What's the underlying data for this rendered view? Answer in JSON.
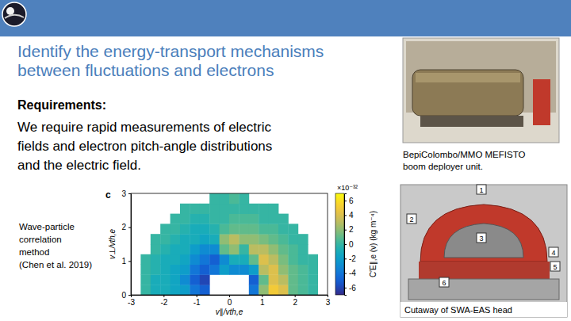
{
  "slide": {
    "title_lines": [
      "Identify the energy-transport mechanisms",
      "between fluctuations and electrons"
    ],
    "heading": "Requirements:",
    "body_lines": [
      "We require rapid measurements of electric",
      "fields and electron pitch-angle distributions",
      "and the electric field."
    ],
    "method_lines": [
      "Wave-particle",
      "correlation",
      "method",
      "(Chen et al. 2019)"
    ],
    "photo_caption_lines": [
      "BepiColombo/MMO MEFISTO",
      "boom deployer unit."
    ],
    "cutaway_caption": "Cutaway of SWA-EAS head",
    "cutaway_callouts": [
      1,
      2,
      3,
      4,
      5,
      6
    ]
  },
  "chart_data": {
    "type": "heatmap",
    "panel_label": "c",
    "x_label": "v∥/vth,e",
    "y_label": "v⊥/vth,e",
    "xlim": [
      -3,
      3
    ],
    "ylim": [
      0,
      3
    ],
    "xticks": [
      -3,
      -2,
      -1,
      0,
      1,
      2,
      3
    ],
    "yticks": [
      0,
      1,
      2,
      3
    ],
    "x": [
      -2.85,
      -2.55,
      -2.25,
      -1.95,
      -1.65,
      -1.35,
      -1.05,
      -0.75,
      -0.45,
      -0.15,
      0.15,
      0.45,
      0.75,
      1.05,
      1.35,
      1.65,
      1.95,
      2.25,
      2.55,
      2.85
    ],
    "y": [
      0.15,
      0.45,
      0.75,
      1.05,
      1.35,
      1.65,
      1.95,
      2.25,
      2.55,
      2.85
    ],
    "values": [
      [
        null,
        0,
        -1,
        -1,
        -1.5,
        -2,
        -4,
        -5,
        null,
        null,
        null,
        null,
        -4,
        2,
        5,
        4,
        1,
        0.5,
        0,
        null
      ],
      [
        null,
        0,
        -1,
        -1,
        -1.5,
        -3,
        -5,
        -6,
        null,
        null,
        null,
        null,
        -5,
        1,
        4,
        3,
        1,
        0.5,
        0,
        null
      ],
      [
        null,
        0,
        -0.5,
        -1,
        -1.5,
        -2,
        -4,
        -5,
        -4,
        -2,
        -3,
        -3,
        -2,
        3,
        4,
        2,
        1,
        0.5,
        0,
        null
      ],
      [
        null,
        0,
        -0.5,
        -1,
        -1,
        -1.5,
        -3,
        -4,
        -5,
        -3,
        -1,
        -1,
        1,
        4,
        3,
        1.5,
        0.5,
        0,
        0,
        null
      ],
      [
        null,
        null,
        0,
        -0.5,
        -1,
        -1,
        -2,
        -3,
        -3,
        1,
        2,
        0,
        3,
        3,
        2,
        1,
        0.5,
        0,
        null,
        null
      ],
      [
        null,
        null,
        0,
        0,
        -0.5,
        -1,
        -1,
        -1.5,
        -1,
        2,
        3,
        2,
        2,
        1.5,
        1,
        0.5,
        0,
        0,
        null,
        null
      ],
      [
        null,
        null,
        null,
        0,
        0,
        -0.5,
        -1,
        -1,
        -0.5,
        0.5,
        1,
        1,
        1,
        0.5,
        0.5,
        0,
        0,
        null,
        null,
        null
      ],
      [
        null,
        null,
        null,
        null,
        0,
        0,
        -0.5,
        -0.5,
        0,
        0,
        0.5,
        0.5,
        0.5,
        0,
        0,
        0,
        null,
        null,
        null,
        null
      ],
      [
        null,
        null,
        null,
        null,
        null,
        0,
        0,
        0,
        0,
        0,
        0,
        0,
        0,
        0,
        0,
        null,
        null,
        null,
        null,
        null
      ],
      [
        null,
        null,
        null,
        null,
        null,
        null,
        null,
        null,
        0,
        0,
        0.5,
        0,
        null,
        null,
        null,
        null,
        null,
        null,
        null,
        null
      ]
    ],
    "colorbar": {
      "range": [
        -7,
        7
      ],
      "ticks": [
        -6,
        -4,
        -2,
        0,
        2,
        4,
        6
      ],
      "label": "C′E∥,e (v) (kg m⁻⁴)",
      "multiplier": "×10⁻³²"
    }
  }
}
